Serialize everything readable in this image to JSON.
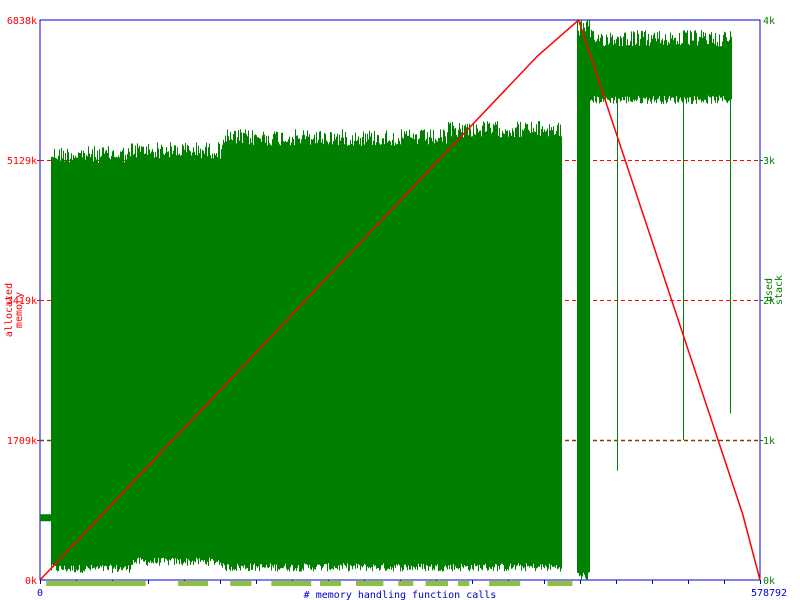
{
  "colors": {
    "memory": "#ff0000",
    "stack": "#008000",
    "frame": "#0000cc",
    "calls_bar": "#8fbf3f",
    "mid_line": "#804000"
  },
  "chart_data": {
    "type": "line",
    "x": {
      "label": "# memory handling function calls",
      "min": 0,
      "max": 578792,
      "tick_labels": [
        {
          "value": 0,
          "label": "0"
        },
        {
          "value": 578792,
          "label": "578792"
        }
      ]
    },
    "y_left": {
      "label": "allocated\nmemory",
      "min": 0,
      "max": 6838,
      "tick_labels": [
        "0k",
        "1709k",
        "3419k",
        "5129k",
        "6838k"
      ],
      "tick_values": [
        0,
        1709,
        3419,
        5129,
        6838
      ]
    },
    "y_right": {
      "label": "used\nstack",
      "min": 0,
      "max": 4,
      "tick_labels": [
        "0k",
        "1k",
        "2k",
        "3k",
        "4k"
      ],
      "tick_values": [
        0,
        1,
        2,
        3,
        4
      ]
    },
    "grid": {
      "dashed_horizontal": true
    },
    "series": [
      {
        "id": "memory",
        "color": "#ff0000",
        "points": [
          [
            0,
            0
          ],
          [
            400000,
            6400
          ],
          [
            433000,
            6838
          ],
          [
            565000,
            800
          ],
          [
            578792,
            0
          ]
        ]
      },
      {
        "id": "stack",
        "color": "#008000",
        "segments": [
          {
            "x_start": 0,
            "x_end": 9000,
            "low": 0.42,
            "high": 0.47
          },
          {
            "x_start": 9000,
            "x_end": 73000,
            "low": 0.05,
            "high": 3.1
          },
          {
            "x_start": 73000,
            "x_end": 146000,
            "low": 0.1,
            "high": 3.13
          },
          {
            "x_start": 146000,
            "x_end": 327000,
            "low": 0.06,
            "high": 3.22
          },
          {
            "x_start": 327000,
            "x_end": 420000,
            "low": 0.06,
            "high": 3.28
          },
          {
            "x_start": 420000,
            "x_end": 432000,
            "low": 3.2,
            "high": 3.2
          },
          {
            "x_start": 432000,
            "x_end": 442000,
            "low": 0.0,
            "high": 4.0
          },
          {
            "x_start": 442000,
            "x_end": 556000,
            "low": 3.4,
            "high": 3.93
          },
          {
            "x_start": 556000,
            "x_end": 560000,
            "low": 4.0,
            "high": 4.0
          }
        ],
        "spikes": [
          {
            "x": 435000,
            "low": 0.0,
            "high": 4.0
          },
          {
            "x": 440000,
            "low": 0.0,
            "high": 4.0
          },
          {
            "x": 464000,
            "low": 0.78,
            "high": 3.5
          },
          {
            "x": 517000,
            "low": 1.0,
            "high": 3.6
          },
          {
            "x": 555000,
            "low": 1.19,
            "high": 3.6
          }
        ]
      }
    ],
    "calls_bar_ranges": [
      [
        5000,
        85000
      ],
      [
        111000,
        135000
      ],
      [
        153000,
        170000
      ],
      [
        186000,
        218000
      ],
      [
        225000,
        242000
      ],
      [
        254000,
        276000
      ],
      [
        288000,
        300000
      ],
      [
        310000,
        328000
      ],
      [
        336000,
        345000
      ],
      [
        361000,
        386000
      ],
      [
        408000,
        428000
      ]
    ],
    "dark_dashed_level_k": 1709
  }
}
